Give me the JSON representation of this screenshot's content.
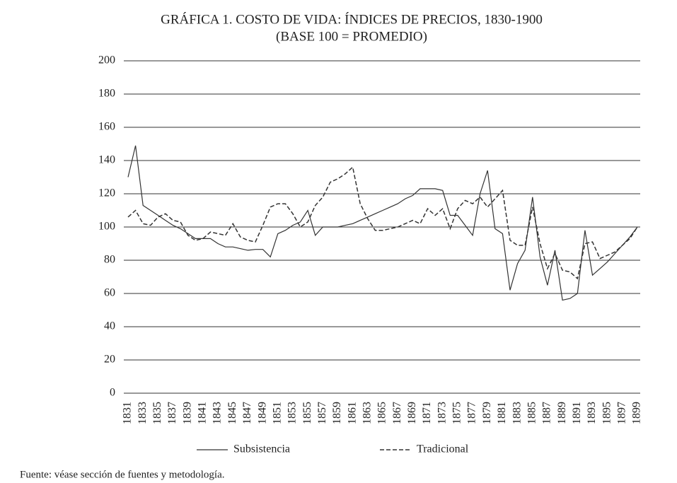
{
  "chart_data": {
    "type": "line",
    "title": "GRÁFICA 1. COSTO DE VIDA: ÍNDICES DE PRECIOS, 1830-1900",
    "subtitle": "(BASE 100 = PROMEDIO)",
    "categories": [
      "1831",
      null,
      "1833",
      null,
      "1835",
      null,
      "1837",
      null,
      "1839",
      null,
      "1841",
      null,
      "1843",
      null,
      "1845",
      null,
      "1847",
      null,
      "1849",
      null,
      "1851",
      null,
      "1853",
      null,
      "1855",
      null,
      "1857",
      null,
      "1859",
      null,
      "1861",
      null,
      "1863",
      null,
      "1865",
      null,
      "1867",
      null,
      "1869",
      null,
      "1871",
      null,
      "1873",
      null,
      "1875",
      null,
      "1877",
      null,
      "1879",
      null,
      "1881",
      null,
      "1883",
      null,
      "1885",
      null,
      "1887",
      null,
      "1889",
      null,
      "1891",
      null,
      "1893",
      null,
      "1895",
      null,
      "1897",
      null,
      "1899"
    ],
    "series": [
      {
        "name": "Subsistencia",
        "color": "#333333",
        "dashed": false,
        "values": [
          130,
          149,
          113,
          110,
          107,
          104,
          101,
          99,
          96,
          93,
          93,
          93,
          90,
          88,
          88,
          87,
          86,
          86.5,
          86.5,
          82,
          96,
          98,
          101,
          103,
          110,
          95,
          100,
          100,
          100,
          101,
          102,
          104,
          106,
          108,
          110,
          112,
          114,
          117,
          119,
          123,
          123,
          123,
          122,
          107,
          107,
          101,
          95,
          120,
          134,
          99,
          96,
          62,
          78,
          86,
          118,
          82,
          65,
          86,
          56,
          57,
          60,
          98,
          71,
          75,
          79,
          84,
          89,
          94,
          100
        ]
      },
      {
        "name": "Tradicional",
        "color": "#333333",
        "dashed": true,
        "values": [
          106,
          110,
          102,
          101,
          106,
          108,
          104,
          103,
          95,
          92,
          93,
          97,
          96,
          95,
          102,
          94,
          92,
          91,
          101,
          112,
          114,
          114,
          108,
          100,
          103,
          113,
          118,
          127,
          129,
          132,
          136,
          114,
          105,
          98,
          98,
          99,
          100,
          102,
          104,
          102,
          111,
          107,
          111,
          99,
          111,
          116,
          114,
          118,
          112,
          117,
          122,
          92,
          89,
          89,
          112,
          90,
          75,
          84,
          74,
          73,
          69,
          90,
          91,
          81,
          83,
          85,
          89,
          93,
          100
        ]
      }
    ],
    "ylim": [
      0,
      200
    ],
    "yticks": [
      0,
      20,
      40,
      60,
      80,
      100,
      120,
      140,
      160,
      180,
      200
    ],
    "grid": true,
    "legend": "bottom"
  },
  "source": "Fuente: véase sección de fuentes y metodología."
}
